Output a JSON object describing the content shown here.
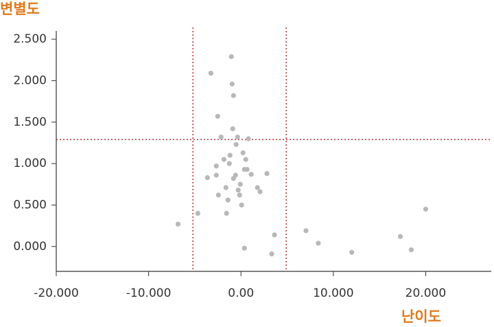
{
  "chart_data": {
    "type": "scatter",
    "x_label": "난이도",
    "y_label": "변별도",
    "xlim": [
      -20,
      27.1
    ],
    "ylim": [
      -0.3,
      2.6
    ],
    "xticks": [
      {
        "value": -20,
        "label": "-20.000"
      },
      {
        "value": -10,
        "label": "-10.000"
      },
      {
        "value": 0,
        "label": "0.00"
      },
      {
        "value": 10,
        "label": "10.000"
      },
      {
        "value": 20,
        "label": "20.000"
      }
    ],
    "yticks": [
      {
        "value": 0,
        "label": "0.000"
      },
      {
        "value": 0.5,
        "label": "0.500"
      },
      {
        "value": 1,
        "label": "1.000"
      },
      {
        "value": 1.5,
        "label": "1.500"
      },
      {
        "value": 2,
        "label": "2.000"
      },
      {
        "value": 2.5,
        "label": "2.500"
      }
    ],
    "grid": false,
    "color": "#b8b8b8",
    "reference_color": "#c03030",
    "reference_x": [
      -5.2,
      4.9
    ],
    "reference_y": [
      1.29
    ],
    "x": [
      -1.04,
      -3.26,
      -0.96,
      -0.81,
      -2.52,
      -0.89,
      -2.15,
      -0.37,
      0.81,
      -0.52,
      0.22,
      -1.19,
      -1.85,
      0.52,
      -1.26,
      -2.67,
      0.37,
      0.67,
      -2.67,
      -0.59,
      1.11,
      2.81,
      -0.81,
      -3.63,
      -0.07,
      -1.63,
      1.78,
      -0.3,
      2.07,
      -0.15,
      -2.44,
      -1.41,
      0.07,
      -4.67,
      -1.56,
      -6.81,
      20.0,
      7.04,
      3.63,
      17.26,
      8.37,
      0.37,
      18.44,
      12.0,
      3.33
    ],
    "y": [
      2.29,
      2.09,
      1.96,
      1.82,
      1.57,
      1.42,
      1.32,
      1.32,
      1.3,
      1.23,
      1.13,
      1.1,
      1.05,
      1.05,
      1.0,
      0.97,
      0.93,
      0.93,
      0.86,
      0.86,
      0.87,
      0.88,
      0.82,
      0.83,
      0.75,
      0.71,
      0.71,
      0.68,
      0.66,
      0.62,
      0.62,
      0.56,
      0.5,
      0.4,
      0.4,
      0.27,
      0.45,
      0.19,
      0.14,
      0.12,
      0.04,
      -0.02,
      -0.04,
      -0.07,
      -0.09
    ]
  }
}
